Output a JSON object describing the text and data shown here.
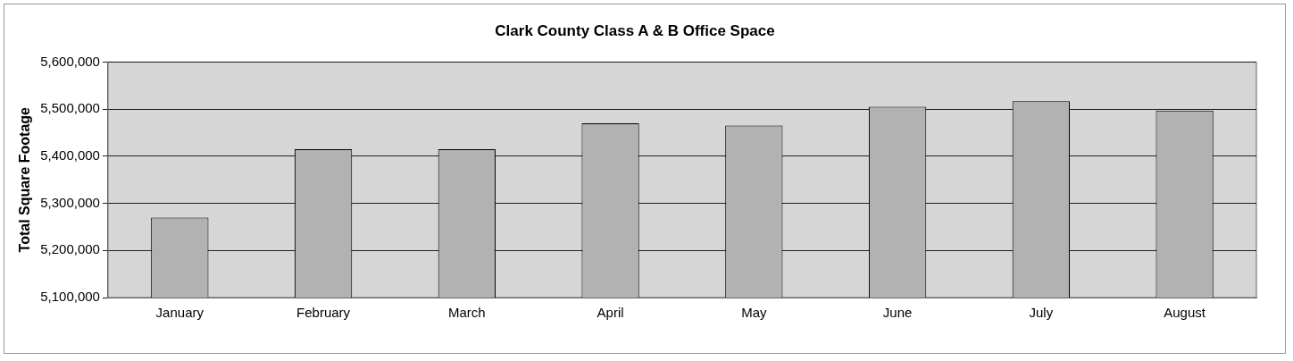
{
  "chart_data": {
    "type": "bar",
    "title": "Clark County Class A & B Office Space",
    "ylabel": "Total Square Footage",
    "categories": [
      "January",
      "February",
      "March",
      "April",
      "May",
      "June",
      "July",
      "August"
    ],
    "values": [
      5270000,
      5415000,
      5415000,
      5470000,
      5465000,
      5505000,
      5517000,
      5497000
    ],
    "color": "#b2b2b2",
    "ylim": [
      5100000,
      5600000
    ],
    "yticks": [
      {
        "value": 5100000,
        "label": "5,100,000"
      },
      {
        "value": 5200000,
        "label": "5,200,000"
      },
      {
        "value": 5300000,
        "label": "5,300,000"
      },
      {
        "value": 5400000,
        "label": "5,400,000"
      },
      {
        "value": 5500000,
        "label": "5,500,000"
      },
      {
        "value": 5600000,
        "label": "5,600,000"
      }
    ],
    "grid": "y",
    "legend": false
  }
}
